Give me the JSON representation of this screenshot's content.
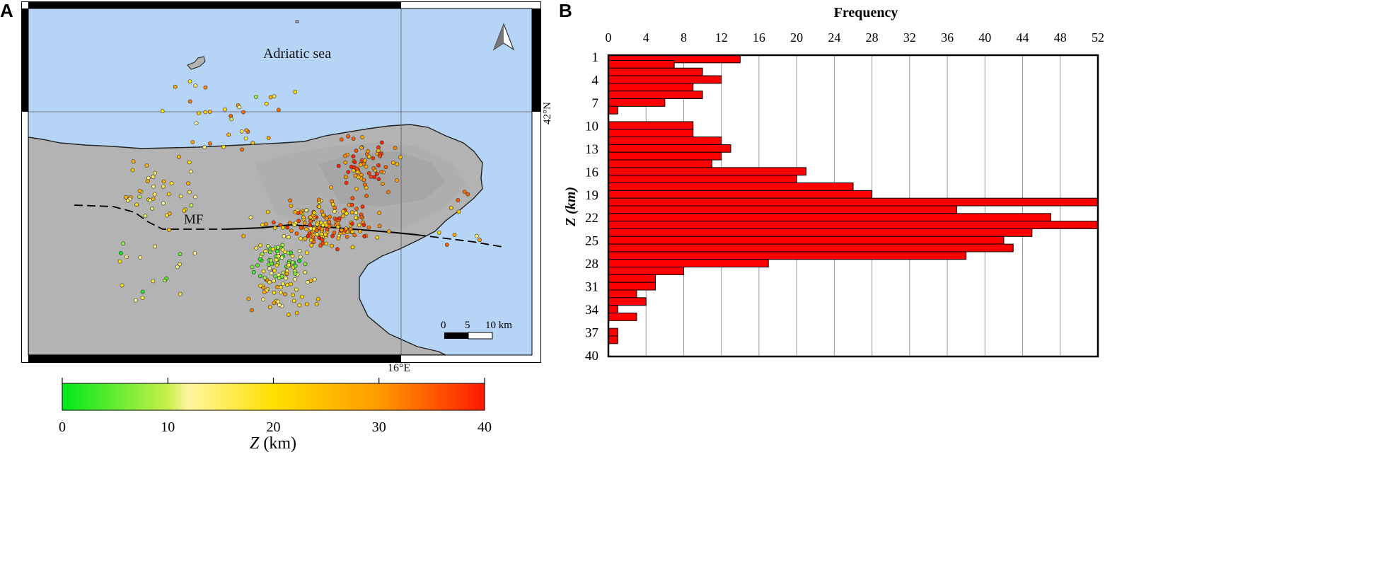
{
  "panels": {
    "a_label": "A",
    "b_label": "B"
  },
  "map": {
    "sea_label": "Adriatic sea",
    "fault_label": "MF",
    "lat_label": "42°N",
    "lon_label": "16°E",
    "north_arrow": "north-arrow-icon",
    "scalebar": {
      "labels": [
        "0",
        "5",
        "10 km"
      ]
    },
    "colors": {
      "sea": "#b6d5f6",
      "land": "#b3b3b3",
      "frame": "#000000"
    },
    "colorbar": {
      "ticks": [
        "0",
        "10",
        "20",
        "30",
        "40"
      ],
      "label_var": "Z",
      "label_unit": " (km)",
      "stops": [
        "#00e81a",
        "#c8ef4a",
        "#fff5a0",
        "#ffe000",
        "#ff9a00",
        "#ff1a00"
      ]
    }
  },
  "chart_data": {
    "type": "bar",
    "orientation": "horizontal",
    "title": "Frequency",
    "xlabel": "Frequency",
    "ylabel": "Z (km)",
    "xlim": [
      0,
      52
    ],
    "ylim": [
      1,
      40
    ],
    "x_ticks": [
      "0",
      "4",
      "8",
      "12",
      "16",
      "20",
      "24",
      "28",
      "32",
      "36",
      "40",
      "44",
      "48",
      "52"
    ],
    "y_ticks": [
      "1",
      "4",
      "7",
      "10",
      "13",
      "16",
      "19",
      "22",
      "25",
      "28",
      "31",
      "34",
      "37",
      "40"
    ],
    "categories": [
      1,
      2,
      3,
      4,
      5,
      6,
      7,
      8,
      9,
      10,
      11,
      12,
      13,
      14,
      15,
      16,
      17,
      18,
      19,
      20,
      21,
      22,
      23,
      24,
      25,
      26,
      27,
      28,
      29,
      30,
      31,
      32,
      33,
      34,
      35,
      36,
      37,
      38,
      39
    ],
    "values": [
      14,
      7,
      10,
      12,
      9,
      10,
      6,
      1,
      0,
      9,
      9,
      12,
      13,
      12,
      11,
      21,
      20,
      26,
      28,
      52,
      37,
      47,
      52,
      45,
      42,
      43,
      38,
      17,
      8,
      5,
      5,
      3,
      4,
      1,
      3,
      0,
      1,
      1,
      0
    ],
    "bar_color": "#ff0000",
    "grid": true
  }
}
